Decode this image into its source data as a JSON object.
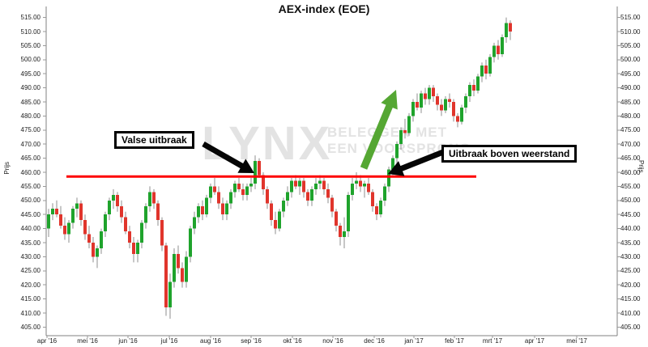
{
  "chart": {
    "title": "AEX-index (EOE)"
  },
  "watermark": {
    "brand": "LYNX",
    "line1": "BELEGGEN MET",
    "line2": "EEN VOORSPRONG"
  },
  "axes": {
    "y_label": "Prijs",
    "y_ticks": [
      "515.00",
      "510.00",
      "505.00",
      "500.00",
      "495.00",
      "490.00",
      "485.00",
      "480.00",
      "475.00",
      "470.00",
      "465.00",
      "460.00",
      "455.00",
      "450.00",
      "445.00",
      "440.00",
      "435.00",
      "430.00",
      "425.00",
      "420.00",
      "415.00",
      "410.00",
      "405.00"
    ],
    "x_ticks": [
      "apr '16",
      "mei '16",
      "jun '16",
      "jul '16",
      "aug '16",
      "sep '16",
      "okt '16",
      "nov '16",
      "dec '16",
      "jan '17",
      "feb '17",
      "mrt '17",
      "apr '17",
      "mei '17"
    ]
  },
  "annotations": [
    {
      "label": "Valse uitbraak"
    },
    {
      "label": "Uitbraak boven weerstand"
    }
  ],
  "colors": {
    "candle_up": "#1fa32c",
    "candle_down": "#e0352c",
    "wick": "#8f8f8f",
    "resistance_line": "#fe0000",
    "arrow_green": "#55a733",
    "arrow_black": "#050505",
    "axis": "#808080",
    "watermark": "#e3e3e3"
  },
  "chart_data": {
    "type": "candlestick",
    "title": "AEX-index (EOE)",
    "ylabel": "Prijs",
    "ylim": [
      402.5,
      518.5
    ],
    "y_tick_step": 5,
    "x_tick_labels": [
      "apr '16",
      "mei '16",
      "jun '16",
      "jul '16",
      "aug '16",
      "sep '16",
      "okt '16",
      "nov '16",
      "dec '16",
      "jan '17",
      "feb '17",
      "mrt '17",
      "apr '17",
      "mei '17"
    ],
    "resistance_level": 458.5,
    "legend": "none",
    "grid": false,
    "candles_ohlc": [
      [
        440,
        447,
        437,
        445
      ],
      [
        445,
        449,
        443,
        447
      ],
      [
        447,
        450,
        444,
        445
      ],
      [
        445,
        448,
        440,
        441
      ],
      [
        441,
        444,
        436,
        438
      ],
      [
        438,
        443,
        435,
        442
      ],
      [
        442,
        448,
        440,
        447
      ],
      [
        447,
        451,
        444,
        449
      ],
      [
        449,
        450,
        441,
        443
      ],
      [
        443,
        445,
        436,
        438
      ],
      [
        438,
        441,
        433,
        435
      ],
      [
        435,
        437,
        428,
        430
      ],
      [
        430,
        434,
        426,
        433
      ],
      [
        433,
        440,
        431,
        439
      ],
      [
        439,
        446,
        437,
        445
      ],
      [
        445,
        451,
        443,
        450
      ],
      [
        450,
        454,
        447,
        452
      ],
      [
        452,
        453,
        446,
        448
      ],
      [
        448,
        450,
        442,
        444
      ],
      [
        444,
        446,
        438,
        439
      ],
      [
        439,
        441,
        433,
        435
      ],
      [
        435,
        437,
        428,
        431
      ],
      [
        431,
        436,
        428,
        435
      ],
      [
        435,
        443,
        433,
        442
      ],
      [
        442,
        449,
        440,
        448
      ],
      [
        448,
        455,
        446,
        453
      ],
      [
        453,
        454,
        447,
        449
      ],
      [
        449,
        450,
        441,
        443
      ],
      [
        443,
        444,
        432,
        434
      ],
      [
        434,
        435,
        409,
        412
      ],
      [
        412,
        424,
        408,
        421
      ],
      [
        421,
        433,
        419,
        431
      ],
      [
        431,
        434,
        424,
        426
      ],
      [
        426,
        428,
        419,
        421
      ],
      [
        421,
        432,
        419,
        430
      ],
      [
        430,
        441,
        428,
        440
      ],
      [
        440,
        446,
        438,
        444
      ],
      [
        444,
        449,
        442,
        448
      ],
      [
        448,
        450,
        443,
        445
      ],
      [
        445,
        452,
        444,
        451
      ],
      [
        451,
        456,
        449,
        455
      ],
      [
        455,
        458,
        452,
        453
      ],
      [
        453,
        455,
        447,
        449
      ],
      [
        449,
        451,
        443,
        445
      ],
      [
        445,
        450,
        443,
        449
      ],
      [
        449,
        454,
        447,
        453
      ],
      [
        453,
        457,
        451,
        456
      ],
      [
        456,
        458,
        453,
        454
      ],
      [
        454,
        456,
        450,
        452
      ],
      [
        452,
        456,
        450,
        455
      ],
      [
        455,
        458,
        453,
        456
      ],
      [
        456,
        466,
        454,
        464
      ],
      [
        464,
        465,
        458,
        459
      ],
      [
        459,
        460,
        452,
        454
      ],
      [
        454,
        455,
        447,
        449
      ],
      [
        449,
        450,
        441,
        443
      ],
      [
        443,
        446,
        438,
        440
      ],
      [
        440,
        447,
        439,
        446
      ],
      [
        446,
        451,
        444,
        450
      ],
      [
        450,
        455,
        448,
        453
      ],
      [
        453,
        458,
        451,
        457
      ],
      [
        457,
        459,
        454,
        455
      ],
      [
        455,
        458,
        452,
        457
      ],
      [
        457,
        458,
        451,
        453
      ],
      [
        453,
        454,
        448,
        450
      ],
      [
        450,
        455,
        448,
        454
      ],
      [
        454,
        458,
        452,
        456
      ],
      [
        456,
        459,
        454,
        457
      ],
      [
        457,
        458,
        452,
        454
      ],
      [
        454,
        456,
        449,
        451
      ],
      [
        451,
        452,
        444,
        446
      ],
      [
        446,
        447,
        439,
        441
      ],
      [
        441,
        442,
        434,
        437
      ],
      [
        437,
        444,
        433,
        439
      ],
      [
        439,
        453,
        437,
        452
      ],
      [
        452,
        458,
        450,
        456
      ],
      [
        456,
        460,
        454,
        457
      ],
      [
        457,
        459,
        453,
        455
      ],
      [
        455,
        457,
        451,
        456
      ],
      [
        456,
        458,
        452,
        453
      ],
      [
        453,
        454,
        446,
        448
      ],
      [
        448,
        449,
        443,
        445
      ],
      [
        445,
        451,
        444,
        450
      ],
      [
        450,
        456,
        448,
        455
      ],
      [
        455,
        462,
        453,
        461
      ],
      [
        461,
        466,
        459,
        465
      ],
      [
        465,
        471,
        463,
        470
      ],
      [
        470,
        476,
        468,
        475
      ],
      [
        475,
        479,
        472,
        474
      ],
      [
        474,
        481,
        473,
        480
      ],
      [
        480,
        486,
        478,
        485
      ],
      [
        485,
        488,
        482,
        483
      ],
      [
        483,
        489,
        481,
        488
      ],
      [
        488,
        490,
        484,
        486
      ],
      [
        486,
        491,
        484,
        490
      ],
      [
        490,
        491,
        485,
        487
      ],
      [
        487,
        488,
        482,
        484
      ],
      [
        484,
        486,
        480,
        482
      ],
      [
        482,
        487,
        481,
        486
      ],
      [
        486,
        488,
        483,
        485
      ],
      [
        485,
        486,
        478,
        480
      ],
      [
        480,
        481,
        476,
        478
      ],
      [
        478,
        484,
        477,
        483
      ],
      [
        483,
        488,
        481,
        487
      ],
      [
        487,
        492,
        485,
        491
      ],
      [
        491,
        493,
        487,
        489
      ],
      [
        489,
        495,
        488,
        494
      ],
      [
        494,
        499,
        492,
        498
      ],
      [
        498,
        500,
        493,
        495
      ],
      [
        495,
        502,
        494,
        501
      ],
      [
        501,
        506,
        499,
        505
      ],
      [
        505,
        507,
        500,
        502
      ],
      [
        502,
        509,
        501,
        508
      ],
      [
        508,
        515,
        506,
        513
      ],
      [
        513,
        514,
        507,
        510
      ]
    ]
  }
}
